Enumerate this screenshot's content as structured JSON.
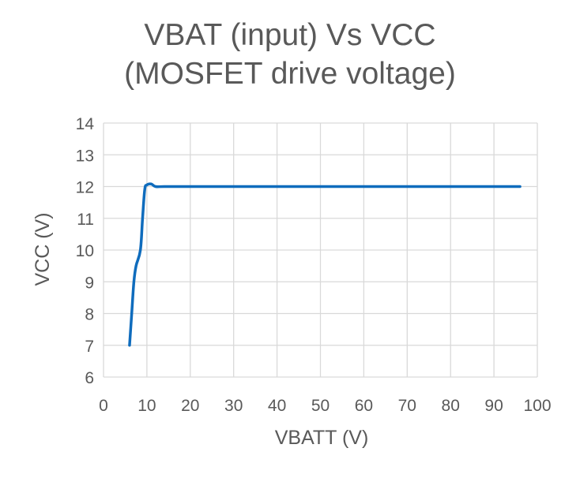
{
  "chart_data": {
    "type": "line",
    "title": [
      "VBAT (input) Vs VCC",
      "(MOSFET drive voltage)"
    ],
    "xlabel": "VBATT (V)",
    "ylabel": "VCC (V)",
    "xlim": [
      0,
      100
    ],
    "ylim": [
      6,
      14
    ],
    "xticks": [
      0,
      10,
      20,
      30,
      40,
      50,
      60,
      70,
      80,
      90,
      100
    ],
    "yticks": [
      6,
      7,
      8,
      9,
      10,
      11,
      12,
      13,
      14
    ],
    "grid": true,
    "legend": "none",
    "series": [
      {
        "color": "#0f6cbd",
        "x": [
          6,
          6.5,
          7,
          7.5,
          8.5,
          9,
          9.5,
          10,
          11,
          12,
          14,
          20,
          30,
          40,
          50,
          60,
          70,
          80,
          90,
          96
        ],
        "y": [
          7.0,
          8.0,
          9.0,
          9.5,
          10.0,
          11.0,
          11.9,
          12.05,
          12.08,
          12.0,
          12.0,
          12.0,
          12.0,
          12.0,
          12.0,
          12.0,
          12.0,
          12.0,
          12.0,
          12.0
        ]
      }
    ]
  }
}
